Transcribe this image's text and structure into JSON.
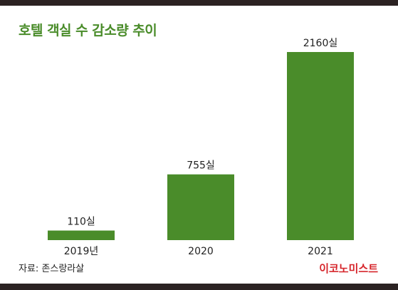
{
  "chart_data": {
    "type": "bar",
    "title": "호텔 객실 수 감소량 추이",
    "categories": [
      "2019년",
      "2020",
      "2021"
    ],
    "values": [
      110,
      755,
      2160
    ],
    "value_labels": [
      "110실",
      "755실",
      "2160실"
    ],
    "xlabel": "",
    "ylabel": "",
    "ylim": [
      0,
      2160
    ],
    "grid": false,
    "legend": "none",
    "bar_color": "#4a8c2a",
    "label_color": "#222222"
  },
  "source": "자료: 존스랑라살",
  "brand": "이코노미스트",
  "colors": {
    "title": "#4a8c2a",
    "brand": "#d6252b",
    "frame": "#2b2222"
  }
}
